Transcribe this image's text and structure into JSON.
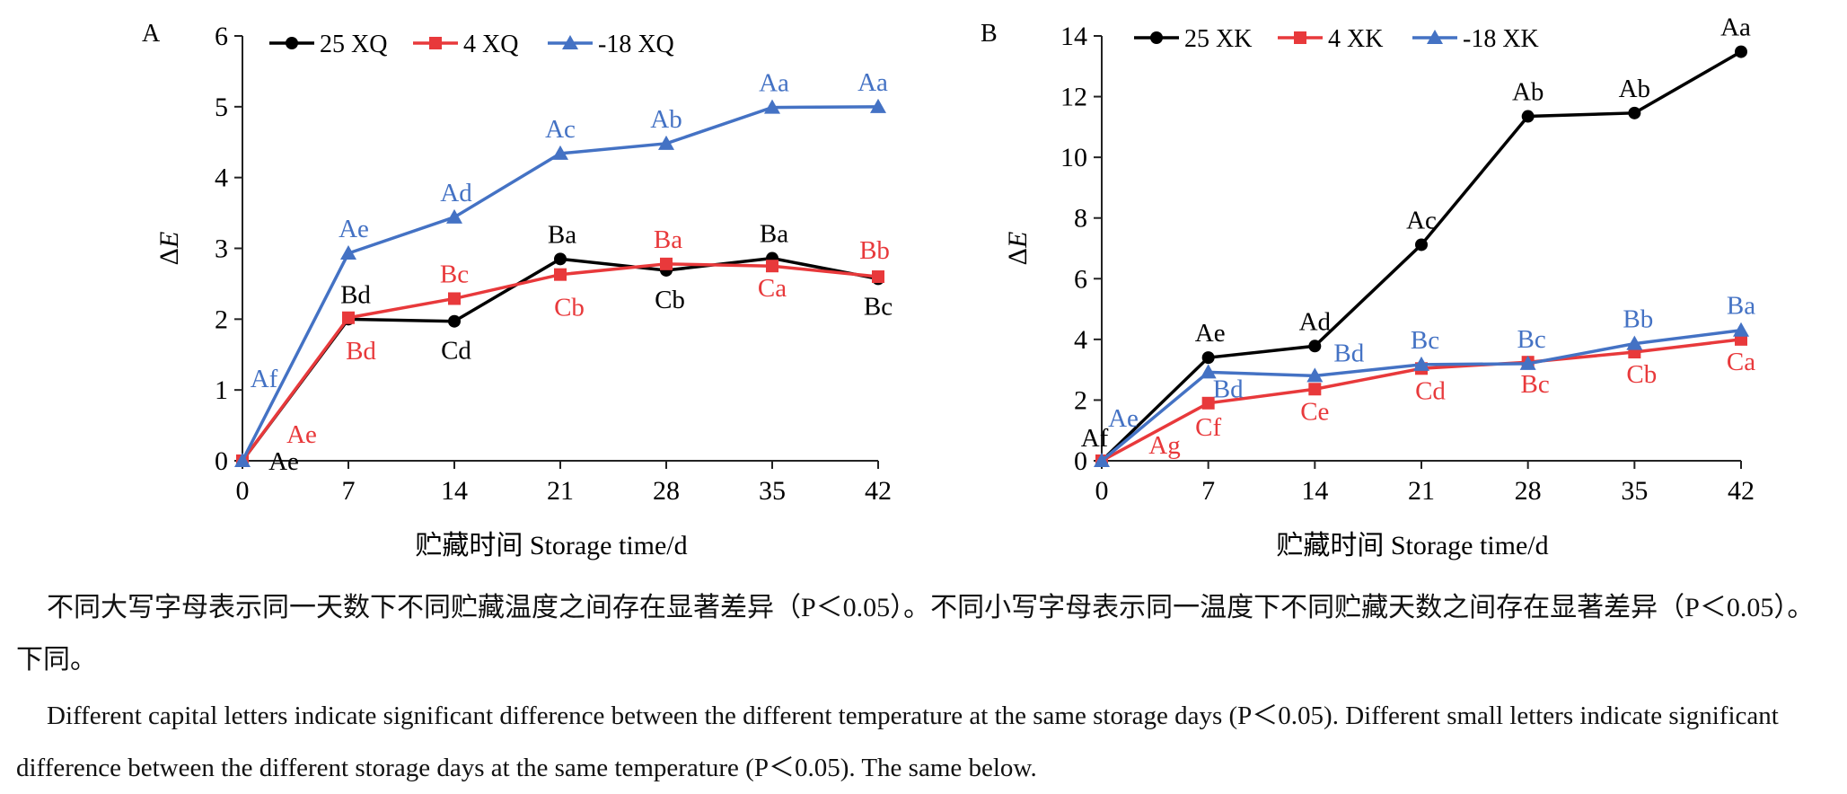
{
  "chart_data": [
    {
      "type": "line",
      "panel": "A",
      "xlabel": "贮藏时间 Storage time/d",
      "ylabel": "ΔE",
      "ylabel_prefix": "Δ",
      "ylabel_var": "E",
      "x": [
        0,
        7,
        14,
        21,
        28,
        35,
        42
      ],
      "xlim": [
        0,
        42
      ],
      "ylim": [
        0,
        6
      ],
      "yticks": [
        0,
        1,
        2,
        3,
        4,
        5,
        6
      ],
      "legend_position": "top",
      "series": [
        {
          "name": "25 XQ",
          "color": "#000000",
          "marker": "circle",
          "values": [
            0,
            2.0,
            1.97,
            2.85,
            2.69,
            2.86,
            2.57
          ],
          "labels": [
            "Ae",
            "Bd",
            "Cd",
            "Ba",
            "Cb",
            "Ba",
            "Bc"
          ]
        },
        {
          "name": "4 XQ",
          "color": "#e8393b",
          "marker": "square",
          "values": [
            0,
            2.02,
            2.29,
            2.63,
            2.78,
            2.75,
            2.6
          ],
          "labels": [
            "Ae",
            "Bd",
            "Bc",
            "Cb",
            "Ba",
            "Ca",
            "Bb"
          ]
        },
        {
          "name": "-18 XQ",
          "color": "#4472c4",
          "marker": "triangle",
          "values": [
            0,
            2.93,
            3.44,
            4.34,
            4.48,
            4.99,
            5.0
          ],
          "labels": [
            "Af",
            "Ae",
            "Ad",
            "Ac",
            "Ab",
            "Aa",
            "Aa"
          ]
        }
      ]
    },
    {
      "type": "line",
      "panel": "B",
      "xlabel": "贮藏时间 Storage time/d",
      "ylabel": "ΔE",
      "ylabel_prefix": "Δ",
      "ylabel_var": "E",
      "x": [
        0,
        7,
        14,
        21,
        28,
        35,
        42
      ],
      "xlim": [
        0,
        42
      ],
      "ylim": [
        0,
        14
      ],
      "yticks": [
        0,
        2,
        4,
        6,
        8,
        10,
        12,
        14
      ],
      "legend_position": "top",
      "series": [
        {
          "name": "25 XK",
          "color": "#000000",
          "marker": "circle",
          "values": [
            0,
            3.4,
            3.78,
            7.12,
            11.35,
            11.46,
            13.48
          ],
          "labels": [
            "Af",
            "Ae",
            "Ad",
            "Ac",
            "Ab",
            "Ab",
            "Aa"
          ]
        },
        {
          "name": "4 XK",
          "color": "#e8393b",
          "marker": "square",
          "values": [
            0,
            1.9,
            2.36,
            3.04,
            3.25,
            3.58,
            4.0
          ],
          "labels": [
            "Ag",
            "Cf",
            "Ce",
            "Cd",
            "Bc",
            "Cb",
            "Ca"
          ]
        },
        {
          "name": "-18 XK",
          "color": "#4472c4",
          "marker": "triangle",
          "values": [
            0,
            2.92,
            2.8,
            3.17,
            3.2,
            3.86,
            4.3
          ],
          "labels": [
            "Ae",
            "Bd",
            "Bd",
            "Bc",
            "Bc",
            "Bb",
            "Ba"
          ]
        }
      ]
    }
  ],
  "caption": {
    "zh": "不同大写字母表示同一天数下不同贮藏温度之间存在显著差异（P＜0.05）。不同小写字母表示同一温度下不同贮藏天数之间存在显著差异（P＜0.05）。下同。",
    "en": "Different capital letters indicate significant difference between the different temperature at the same storage days (P＜0.05). Different small letters indicate significant difference between the different storage days at the same temperature (P＜0.05). The same below."
  }
}
